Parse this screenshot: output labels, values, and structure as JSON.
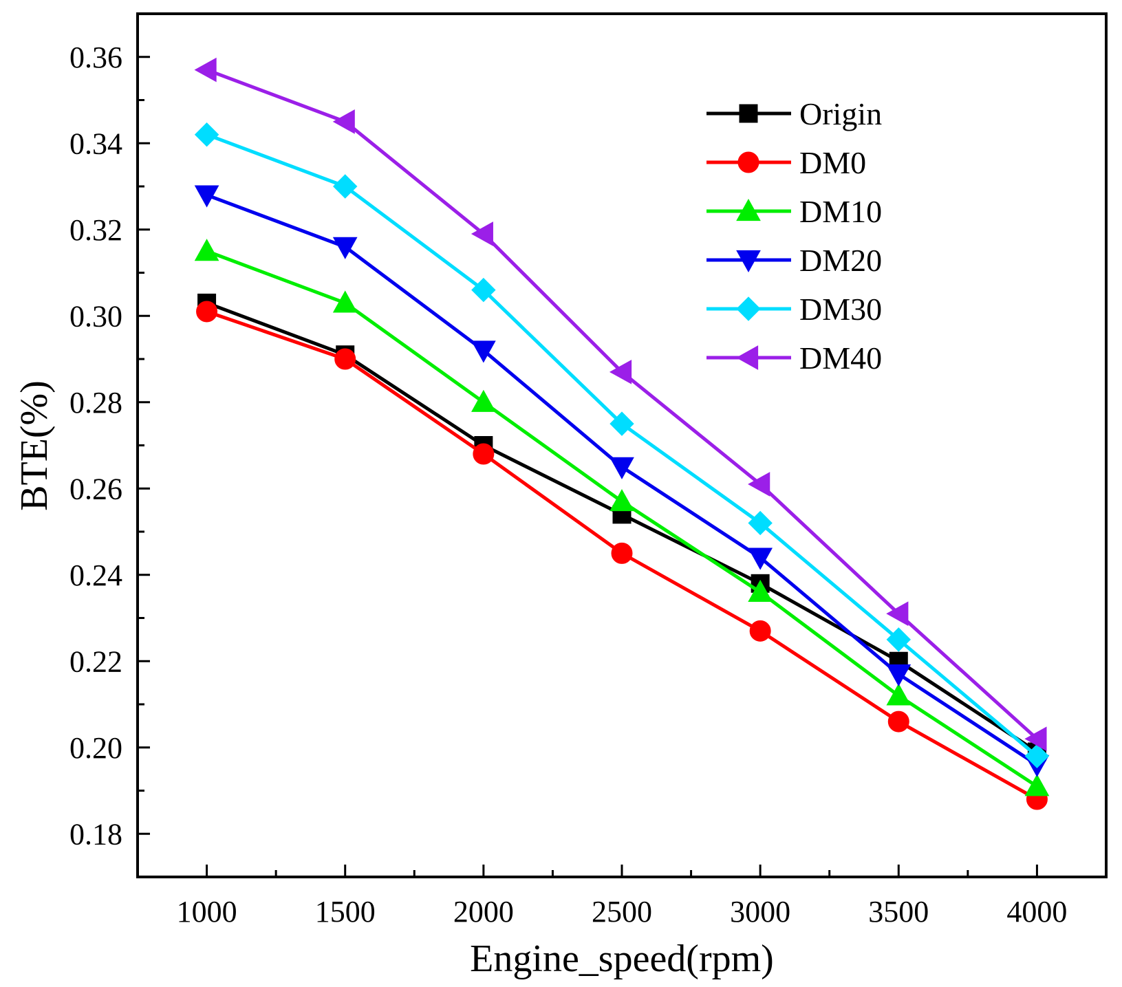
{
  "chart_data": {
    "type": "line",
    "xlabel": "Engine_speed(rpm)",
    "ylabel": "BTE(%)",
    "x": [
      1000,
      1500,
      2000,
      2500,
      3000,
      3500,
      4000
    ],
    "xlim": [
      750,
      4250
    ],
    "ylim": [
      0.17,
      0.37
    ],
    "x_ticks": [
      "1000",
      "1500",
      "2000",
      "2500",
      "3000",
      "3500",
      "4000"
    ],
    "y_ticks": [
      "0.18",
      "0.20",
      "0.22",
      "0.24",
      "0.26",
      "0.28",
      "0.30",
      "0.32",
      "0.34",
      "0.36"
    ],
    "legend_position": "top-right",
    "series": [
      {
        "name": "Origin",
        "color": "#000000",
        "marker": "square",
        "values": [
          0.303,
          0.291,
          0.27,
          0.254,
          0.238,
          0.22,
          0.199
        ]
      },
      {
        "name": "DM0",
        "color": "#ff0000",
        "marker": "circle",
        "values": [
          0.301,
          0.29,
          0.268,
          0.245,
          0.227,
          0.206,
          0.188
        ]
      },
      {
        "name": "DM10",
        "color": "#00ee00",
        "marker": "triangle-up",
        "values": [
          0.315,
          0.303,
          0.28,
          0.257,
          0.236,
          0.212,
          0.191
        ]
      },
      {
        "name": "DM20",
        "color": "#0000ee",
        "marker": "triangle-down",
        "values": [
          0.328,
          0.316,
          0.292,
          0.265,
          0.244,
          0.217,
          0.196
        ]
      },
      {
        "name": "DM30",
        "color": "#00ddff",
        "marker": "diamond",
        "values": [
          0.342,
          0.33,
          0.306,
          0.275,
          0.252,
          0.225,
          0.198
        ]
      },
      {
        "name": "DM40",
        "color": "#9b1fe8",
        "marker": "triangle-left",
        "values": [
          0.357,
          0.345,
          0.319,
          0.287,
          0.261,
          0.231,
          0.202
        ]
      }
    ]
  }
}
